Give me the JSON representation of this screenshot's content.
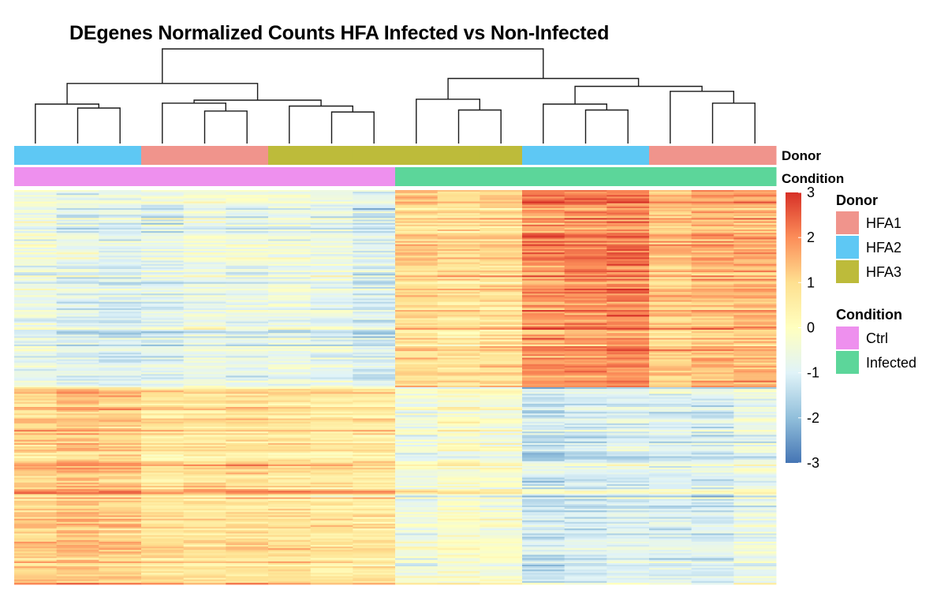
{
  "chart_data": {
    "type": "heatmap",
    "title": "DEgenes Normalized Counts HFA Infected vs Non-Infected",
    "n_columns": 18,
    "n_rows": 240,
    "column_annotations": {
      "Donor": {
        "label": "Donor",
        "values": [
          "HFA2",
          "HFA2",
          "HFA2",
          "HFA1",
          "HFA1",
          "HFA1",
          "HFA3",
          "HFA3",
          "HFA3",
          "HFA3",
          "HFA3",
          "HFA3",
          "HFA2",
          "HFA2",
          "HFA2",
          "HFA1",
          "HFA1",
          "HFA1"
        ]
      },
      "Condition": {
        "label": "Condition",
        "values": [
          "Ctrl",
          "Ctrl",
          "Ctrl",
          "Ctrl",
          "Ctrl",
          "Ctrl",
          "Ctrl",
          "Ctrl",
          "Ctrl",
          "Infected",
          "Infected",
          "Infected",
          "Infected",
          "Infected",
          "Infected",
          "Infected",
          "Infected",
          "Infected"
        ]
      }
    },
    "color_scale": {
      "min": -3,
      "max": 3,
      "ticks": [
        "3",
        "2",
        "1",
        "0",
        "-1",
        "-2",
        "-3"
      ],
      "tick_values": [
        3,
        2,
        1,
        0,
        -1,
        -2,
        -3
      ],
      "colors": [
        "#4575b4",
        "#91bfdb",
        "#e0f3f8",
        "#ffffbf",
        "#fee090",
        "#fc8d59",
        "#d73027"
      ]
    },
    "row_blocks": [
      {
        "rows": 120,
        "column_means": [
          -0.6,
          -0.9,
          -1.0,
          -0.9,
          -0.6,
          -0.7,
          -0.6,
          -0.7,
          -1.0,
          1.0,
          0.9,
          1.0,
          1.9,
          2.0,
          2.1,
          1.3,
          1.5,
          1.5
        ]
      },
      {
        "rows": 120,
        "column_means": [
          1.2,
          1.4,
          1.3,
          0.9,
          0.9,
          1.0,
          0.9,
          0.8,
          0.7,
          -0.4,
          -0.1,
          -0.2,
          -1.2,
          -1.0,
          -0.9,
          -0.9,
          -1.0,
          -0.6
        ]
      }
    ],
    "dendrogram": {
      "merges": [
        {
          "left": 1,
          "right": 2,
          "height": 0.12
        },
        {
          "left": 0,
          "right": "c0",
          "height": 0.16
        },
        {
          "left": 4,
          "right": 5,
          "height": 0.09
        },
        {
          "left": 3,
          "right": "c2",
          "height": 0.17
        },
        {
          "left": 7,
          "right": 8,
          "height": 0.08
        },
        {
          "left": 6,
          "right": "c4",
          "height": 0.14
        },
        {
          "left": "c3",
          "right": "c5",
          "height": 0.2
        },
        {
          "left": "c1",
          "right": "c6",
          "height": 0.37
        },
        {
          "left": 10,
          "right": 11,
          "height": 0.1
        },
        {
          "left": 9,
          "right": "c8",
          "height": 0.21
        },
        {
          "left": 13,
          "right": 14,
          "height": 0.1
        },
        {
          "left": 12,
          "right": "c10",
          "height": 0.16
        },
        {
          "left": 16,
          "right": 17,
          "height": 0.17
        },
        {
          "left": 15,
          "right": "c12",
          "height": 0.29
        },
        {
          "left": "c11",
          "right": "c13",
          "height": 0.34
        },
        {
          "left": "c9",
          "right": "c14",
          "height": 0.42
        },
        {
          "left": "c7",
          "right": "c15",
          "height": 0.72
        }
      ]
    }
  },
  "legend": {
    "donor_title": "Donor",
    "donor_items": [
      {
        "label": "HFA1",
        "color": "#f0948c"
      },
      {
        "label": "HFA2",
        "color": "#5ec8f4"
      },
      {
        "label": "HFA3",
        "color": "#bdbb3a"
      }
    ],
    "condition_title": "Condition",
    "condition_items": [
      {
        "label": "Ctrl",
        "color": "#ee90ee"
      },
      {
        "label": "Infected",
        "color": "#5cd69a"
      }
    ]
  },
  "annotation_row_labels": {
    "donor": "Donor",
    "condition": "Condition"
  }
}
